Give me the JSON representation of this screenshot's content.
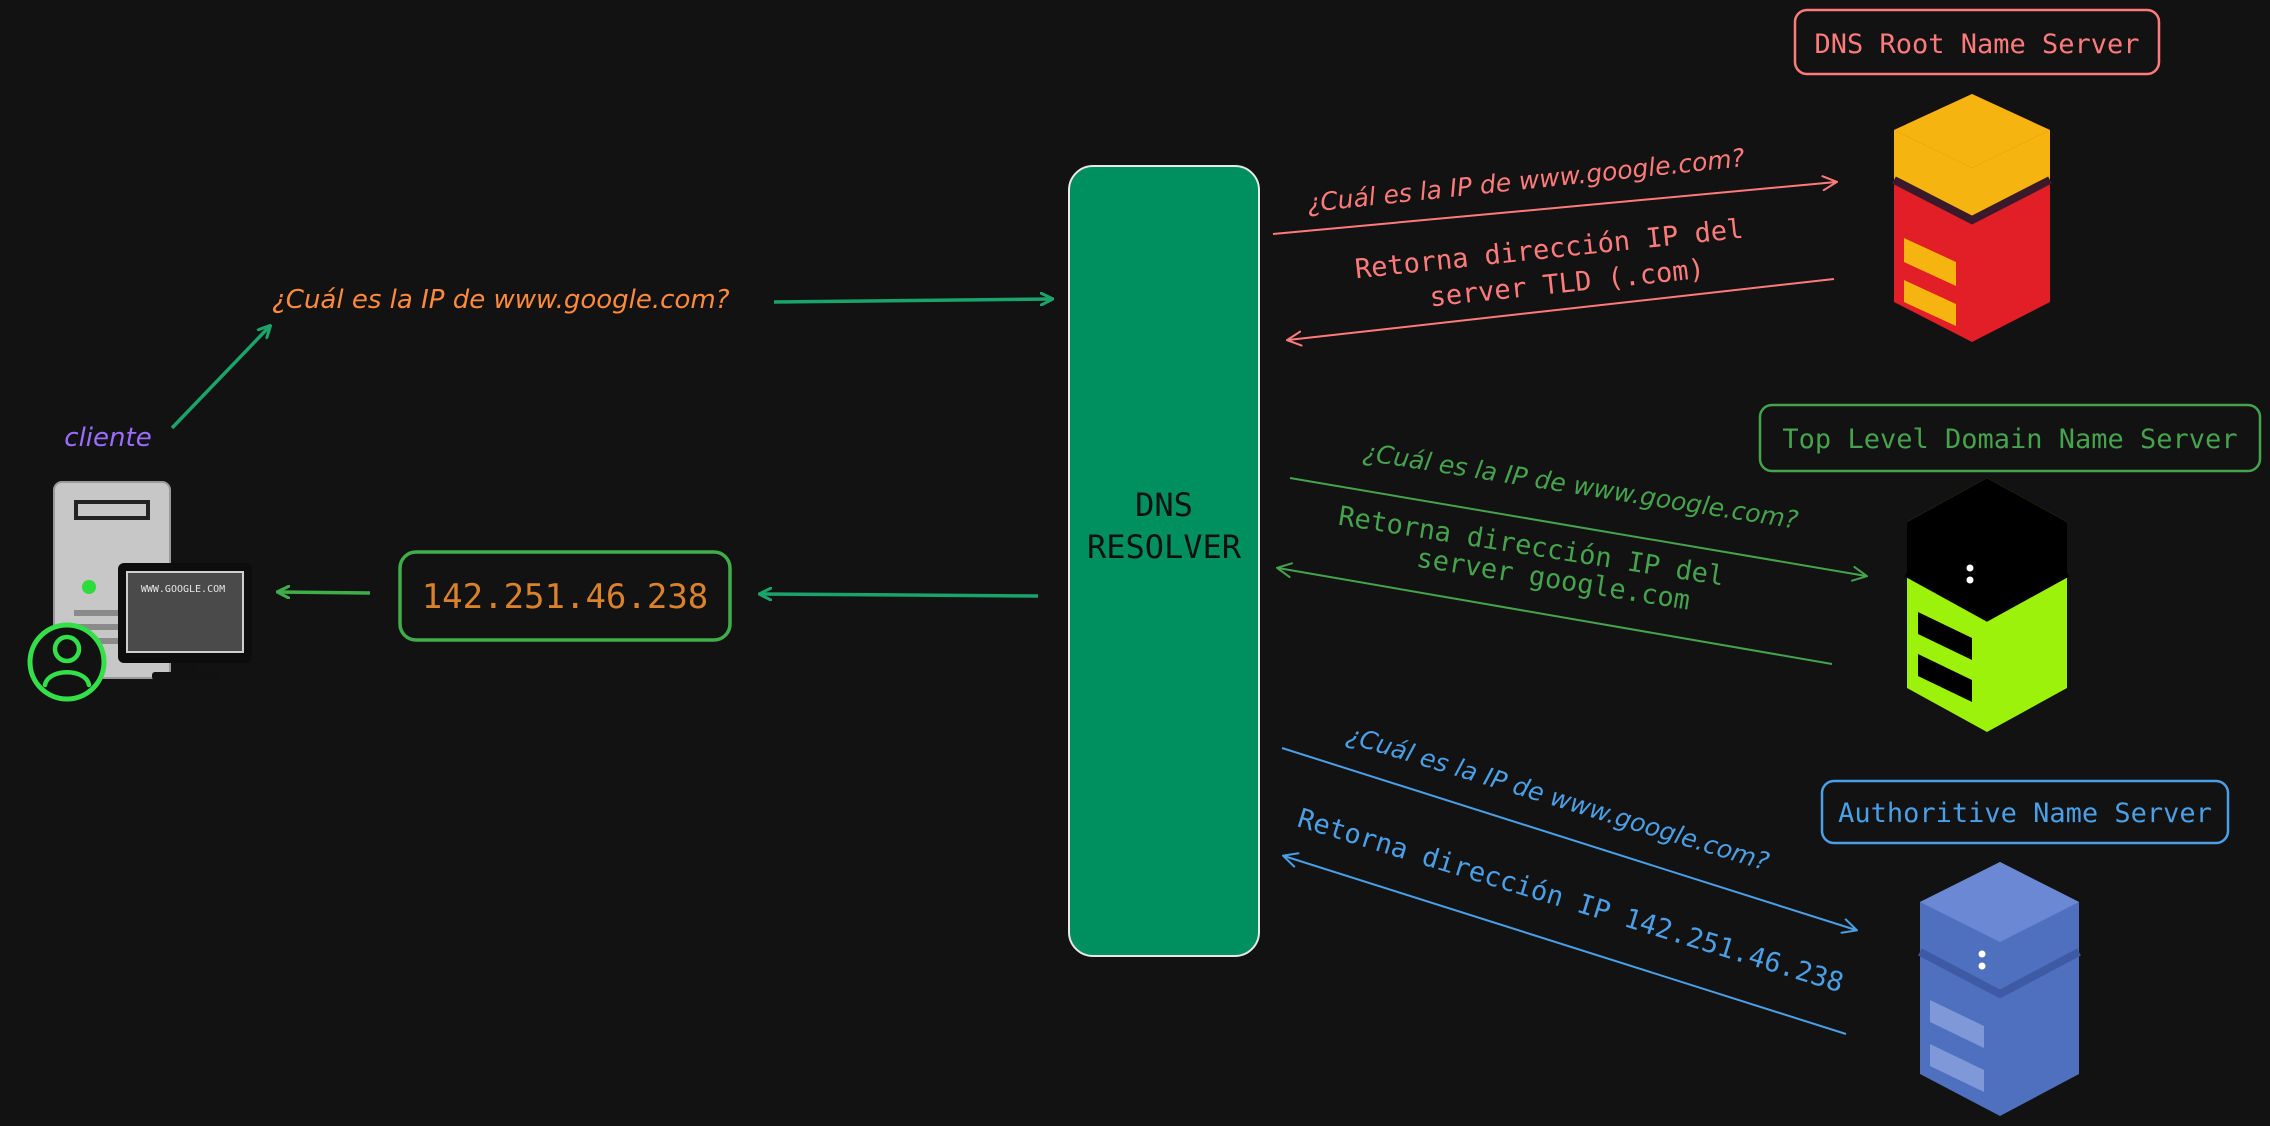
{
  "colors": {
    "background": "#121212",
    "resolver_fill": "#009060",
    "root": "#ff7b7b",
    "tld": "#46a34d",
    "auth": "#4a9fe6",
    "client_question": "#ff8a3d",
    "client_label": "#9b6cff",
    "ip_answer": "#d9822b",
    "flow_arrow": "#1aa36a"
  },
  "resolver": {
    "line1": "DNS",
    "line2": "RESOLVER"
  },
  "client": {
    "label": "cliente",
    "question": "¿Cuál es la IP de www.google.com?",
    "screen_text": "WWW.GOOGLE.COM",
    "icon": "computer-user-icon"
  },
  "answer": {
    "ip": "142.251.46.238"
  },
  "root": {
    "title": "DNS Root Name Server",
    "question": "¿Cuál es la IP de www.google.com?",
    "reply_line1": "Retorna dirección IP del",
    "reply_line2": "server TLD (.com)",
    "icon": "server-icon"
  },
  "tld": {
    "title": "Top Level Domain Name Server",
    "question": "¿Cuál es la IP de www.google.com?",
    "reply_line1": "Retorna dirección IP del",
    "reply_line2": "server google.com",
    "icon": "server-icon"
  },
  "auth": {
    "title": "Authoritive Name Server",
    "question": "¿Cuál es la IP de www.google.com?",
    "reply": "Retorna dirección IP 142.251.46.238",
    "icon": "server-icon"
  }
}
